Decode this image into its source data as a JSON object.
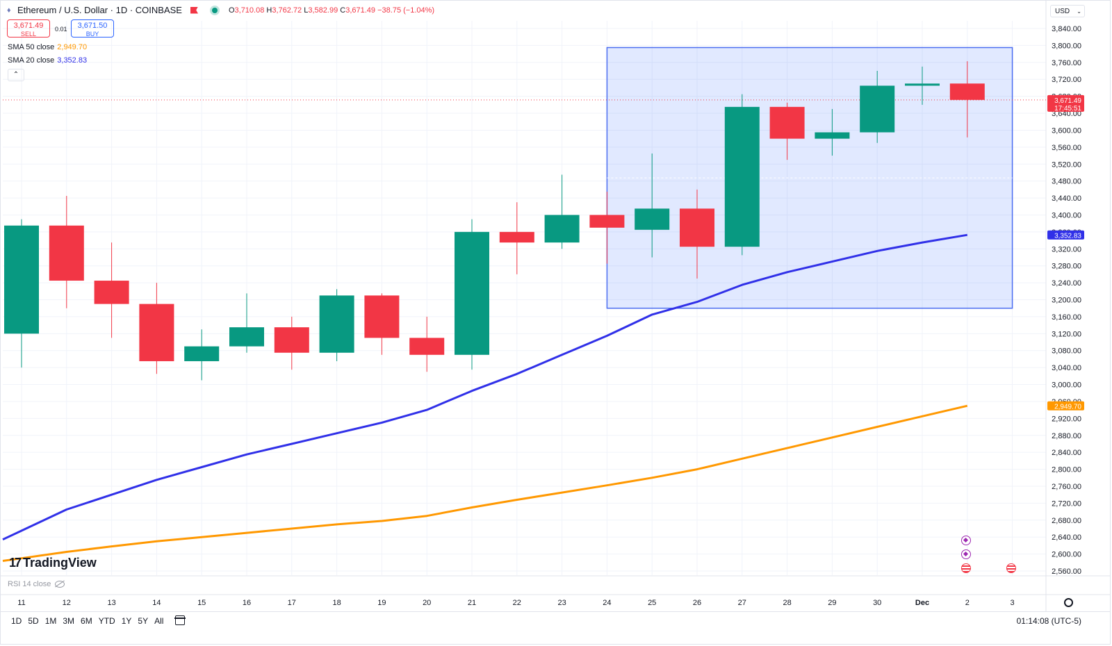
{
  "header": {
    "symbol": "Ethereum / U.S. Dollar · 1D · COINBASE",
    "ohlc": {
      "o_label": "O",
      "o": "3,710.08",
      "h_label": "H",
      "h": "3,762.72",
      "l_label": "L",
      "l": "3,582.99",
      "c_label": "C",
      "c": "3,671.49",
      "change": "−38.75 (−1.04%)"
    },
    "colors": {
      "up": "#089981",
      "down": "#f23645"
    }
  },
  "trade": {
    "sell_price": "3,671.49",
    "sell_label": "SELL",
    "spread": "0.01",
    "buy_price": "3,671.50",
    "buy_label": "BUY"
  },
  "indicators": {
    "sma50": {
      "label": "SMA 50 close",
      "value": "2,949.70",
      "color": "#ff9800"
    },
    "sma20": {
      "label": "SMA 20 close",
      "value": "3,352.83",
      "color": "#3030e8"
    },
    "collapse_icon": "chevron-up-icon"
  },
  "currency": "USD",
  "rsi_label": "RSI 14 close",
  "logo_text": "TradingView",
  "range_buttons": [
    "1D",
    "5D",
    "1M",
    "3M",
    "6M",
    "YTD",
    "1Y",
    "5Y",
    "All"
  ],
  "clock": "01:14:08 (UTC-5)",
  "chart_data": {
    "type": "candlestick",
    "title": "",
    "categories": [
      "11",
      "12",
      "13",
      "14",
      "15",
      "16",
      "17",
      "18",
      "19",
      "20",
      "21",
      "22",
      "23",
      "24",
      "25",
      "26",
      "27",
      "28",
      "29",
      "30",
      "Dec",
      "2"
    ],
    "x_ticks": [
      "11",
      "12",
      "13",
      "14",
      "15",
      "16",
      "17",
      "18",
      "19",
      "20",
      "21",
      "22",
      "23",
      "24",
      "25",
      "26",
      "27",
      "28",
      "29",
      "30",
      "Dec",
      "2",
      "3"
    ],
    "ohlc": [
      {
        "o": 3120,
        "h": 3390,
        "l": 3040,
        "c": 3375
      },
      {
        "o": 3375,
        "h": 3445,
        "l": 3180,
        "c": 3245
      },
      {
        "o": 3245,
        "h": 3335,
        "l": 3110,
        "c": 3190
      },
      {
        "o": 3190,
        "h": 3240,
        "l": 3025,
        "c": 3055
      },
      {
        "o": 3055,
        "h": 3130,
        "l": 3010,
        "c": 3090
      },
      {
        "o": 3090,
        "h": 3215,
        "l": 3075,
        "c": 3135
      },
      {
        "o": 3135,
        "h": 3160,
        "l": 3035,
        "c": 3075
      },
      {
        "o": 3075,
        "h": 3225,
        "l": 3055,
        "c": 3210
      },
      {
        "o": 3210,
        "h": 3215,
        "l": 3070,
        "c": 3110
      },
      {
        "o": 3110,
        "h": 3160,
        "l": 3030,
        "c": 3070
      },
      {
        "o": 3070,
        "h": 3390,
        "l": 3035,
        "c": 3360
      },
      {
        "o": 3360,
        "h": 3430,
        "l": 3260,
        "c": 3335
      },
      {
        "o": 3335,
        "h": 3495,
        "l": 3320,
        "c": 3400
      },
      {
        "o": 3400,
        "h": 3455,
        "l": 3285,
        "c": 3370
      },
      {
        "o": 3365,
        "h": 3545,
        "l": 3300,
        "c": 3415
      },
      {
        "o": 3415,
        "h": 3460,
        "l": 3250,
        "c": 3325
      },
      {
        "o": 3325,
        "h": 3685,
        "l": 3305,
        "c": 3655
      },
      {
        "o": 3655,
        "h": 3665,
        "l": 3530,
        "c": 3580
      },
      {
        "o": 3580,
        "h": 3650,
        "l": 3540,
        "c": 3595
      },
      {
        "o": 3595,
        "h": 3740,
        "l": 3570,
        "c": 3705
      },
      {
        "o": 3705,
        "h": 3750,
        "l": 3660,
        "c": 3710
      },
      {
        "o": 3710.08,
        "h": 3762.72,
        "l": 3582.99,
        "c": 3671.49
      }
    ],
    "sma20": [
      2655,
      2705,
      2740,
      2775,
      2805,
      2835,
      2860,
      2885,
      2910,
      2940,
      2985,
      3025,
      3070,
      3115,
      3165,
      3195,
      3235,
      3265,
      3290,
      3315,
      3335,
      3352.83
    ],
    "sma50": [
      2590,
      2605,
      2618,
      2630,
      2640,
      2650,
      2660,
      2670,
      2678,
      2690,
      2710,
      2728,
      2745,
      2762,
      2780,
      2800,
      2825,
      2850,
      2875,
      2900,
      2925,
      2949.7
    ],
    "y_ticks": [
      "2,560.00",
      "2,600.00",
      "2,640.00",
      "2,680.00",
      "2,720.00",
      "2,760.00",
      "2,800.00",
      "2,840.00",
      "2,880.00",
      "2,920.00",
      "2,960.00",
      "3,000.00",
      "3,040.00",
      "3,080.00",
      "3,120.00",
      "3,160.00",
      "3,200.00",
      "3,240.00",
      "3,280.00",
      "3,320.00",
      "3,360.00",
      "3,400.00",
      "3,440.00",
      "3,480.00",
      "3,520.00",
      "3,560.00",
      "3,600.00",
      "3,640.00",
      "3,680.00",
      "3,720.00",
      "3,760.00",
      "3,800.00",
      "3,840.00"
    ],
    "ylim": [
      2540,
      3860
    ],
    "price_label": {
      "value": "3,671.49",
      "countdown": "17:45:51",
      "price": 3671.49
    },
    "sma20_tag": "3,352.83",
    "sma50_tag": "2,949.70",
    "highlight_box": {
      "x_from": "24",
      "x_to": "3",
      "y_from": 3180,
      "y_to": 3795
    },
    "grid": true
  }
}
